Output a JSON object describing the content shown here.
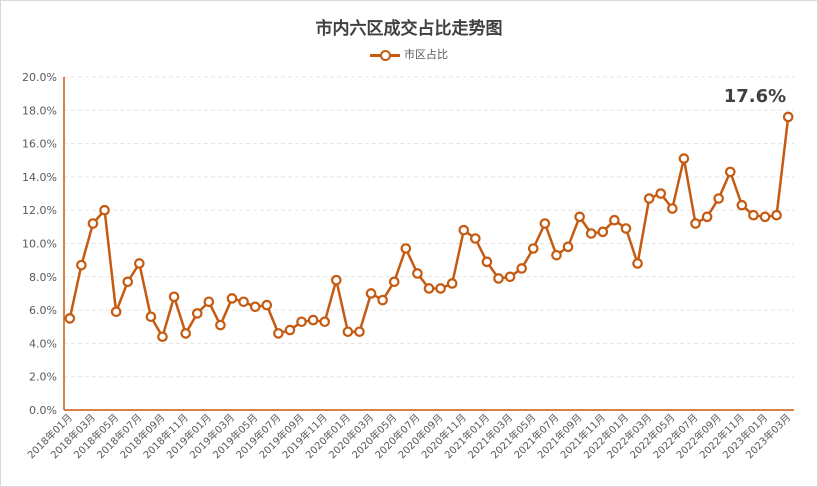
{
  "chart_data": {
    "type": "line",
    "title": "市内六区成交占比走势图",
    "series": [
      {
        "name": "市区占比",
        "color": "#C55A11",
        "values": [
          5.5,
          8.7,
          11.2,
          12.0,
          5.9,
          7.7,
          8.8,
          5.6,
          4.4,
          6.8,
          4.6,
          5.8,
          6.5,
          5.1,
          6.7,
          6.5,
          6.2,
          6.3,
          4.6,
          4.8,
          5.3,
          5.4,
          5.3,
          7.8,
          4.7,
          4.7,
          7.0,
          6.6,
          7.7,
          9.7,
          8.2,
          7.3,
          7.3,
          7.6,
          10.8,
          10.3,
          8.9,
          7.9,
          8.0,
          8.5,
          9.7,
          11.2,
          9.3,
          9.8,
          11.6,
          10.6,
          10.7,
          11.4,
          10.9,
          8.8,
          12.7,
          13.0,
          12.1,
          15.1,
          11.2,
          11.6,
          12.7,
          14.3,
          12.3,
          11.7,
          11.6,
          11.7,
          17.6
        ]
      }
    ],
    "x_tick_labels": [
      "2018年01月",
      "2018年03月",
      "2018年05月",
      "2018年07月",
      "2018年09月",
      "2018年11月",
      "2019年01月",
      "2019年03月",
      "2019年05月",
      "2019年07月",
      "2019年09月",
      "2019年11月",
      "2020年01月",
      "2020年03月",
      "2020年05月",
      "2020年07月",
      "2020年09月",
      "2020年11月",
      "2021年01月",
      "2021年03月",
      "2021年05月",
      "2021年07月",
      "2021年09月",
      "2021年11月",
      "2022年01月",
      "2022年03月",
      "2022年05月",
      "2022年07月",
      "2022年09月",
      "2022年11月",
      "2023年01月",
      "2023年03月"
    ],
    "y_ticks": [
      "0.0%",
      "2.0%",
      "4.0%",
      "6.0%",
      "8.0%",
      "10.0%",
      "12.0%",
      "14.0%",
      "16.0%",
      "18.0%",
      "20.0%"
    ],
    "ylim": [
      0,
      20
    ],
    "annotation": "17.6%",
    "grid": true,
    "legend_position": "top"
  }
}
